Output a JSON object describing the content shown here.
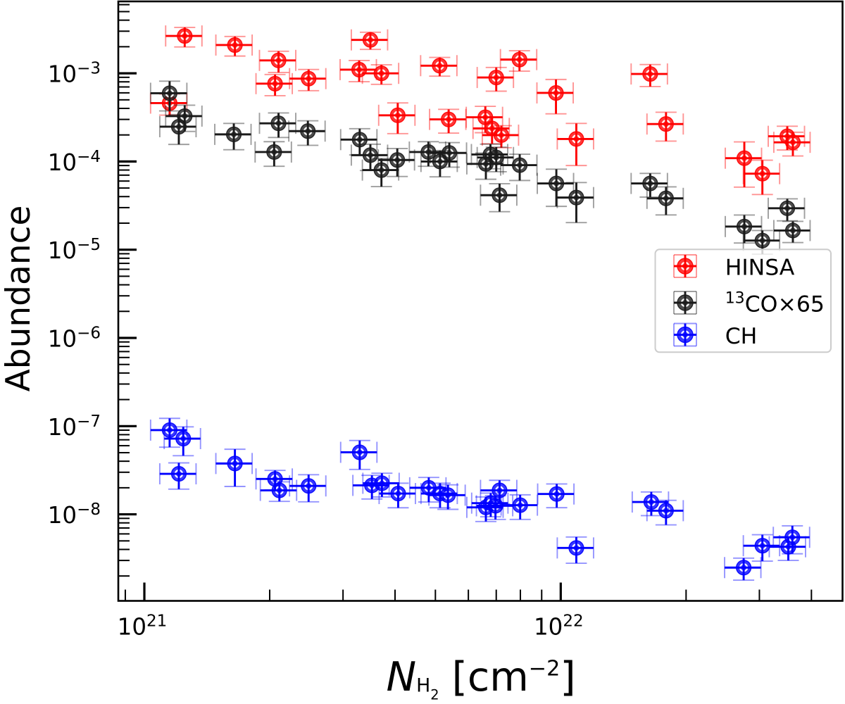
{
  "chart_data": {
    "type": "scatter",
    "title": "",
    "xlabel": {
      "text": "N_H2 [cm^-2]",
      "segments": [
        {
          "t": "N",
          "s": "italic"
        },
        {
          "t": "H",
          "s": "sub"
        },
        {
          "t": "2",
          "s": "subsub"
        },
        {
          "t": " [cm",
          "s": ""
        },
        {
          "t": "−2",
          "s": "sup"
        },
        {
          "t": "]",
          "s": ""
        }
      ]
    },
    "ylabel": {
      "text": "Abundance"
    },
    "axes": {
      "xscale": "log",
      "yscale": "log",
      "xlim": [
        8.658e+20,
        4.751e+22
      ],
      "ylim": [
        1.0448e-09,
        0.0065283
      ],
      "x_labeled_decades": [
        21,
        22
      ],
      "y_labeled_decades": [
        -3,
        -4,
        -5,
        -6,
        -7,
        -8
      ],
      "tick_label_base": "10",
      "grid": false
    },
    "legend": {
      "position": "center right",
      "entries": [
        {
          "label": "HINSA",
          "segments": [
            {
              "t": "HINSA",
              "s": ""
            }
          ],
          "color": "#ff0000"
        },
        {
          "label": "13CO×65",
          "segments": [
            {
              "t": "13",
              "s": "sup"
            },
            {
              "t": "CO×65",
              "s": ""
            }
          ],
          "color": "#1a1a1a"
        },
        {
          "label": "CH",
          "segments": [
            {
              "t": "CH",
              "s": ""
            }
          ],
          "color": "#0000ff"
        }
      ]
    },
    "series": [
      {
        "name": "HINSA",
        "color": "#ff0000",
        "points": [
          {
            "x": 1.15e+21,
            "y": 0.000459,
            "xerr": 1.15e+20,
            "yerr": 0.000124
          },
          {
            "x": 1.25e+21,
            "y": 0.00265,
            "xerr": 1.25e+20,
            "yerr": 0.000663
          },
          {
            "x": 1.65e+21,
            "y": 0.00209,
            "xerr": 1.65e+20,
            "yerr": 0.000522
          },
          {
            "x": 2.1e+21,
            "y": 0.0014,
            "xerr": 2.1e+20,
            "yerr": 0.000378
          },
          {
            "x": 2.06e+21,
            "y": 0.000763,
            "xerr": 2.06e+20,
            "yerr": 0.000206
          },
          {
            "x": 2.48e+21,
            "y": 0.00087,
            "xerr": 2.48e+20,
            "yerr": 0.000235
          },
          {
            "x": 3.28e+21,
            "y": 0.0011,
            "xerr": 3.28e+20,
            "yerr": 0.000297
          },
          {
            "x": 3.49e+21,
            "y": 0.00239,
            "xerr": 3.49e+20,
            "yerr": 0.000526
          },
          {
            "x": 3.71e+21,
            "y": 0.000998,
            "xerr": 3.71e+20,
            "yerr": 0.000249
          },
          {
            "x": 4.06e+21,
            "y": 0.000334,
            "xerr": 4.06e+20,
            "yerr": 0.000127
          },
          {
            "x": 5.12e+21,
            "y": 0.00122,
            "xerr": 5.12e+20,
            "yerr": 0.000293
          },
          {
            "x": 5.38e+21,
            "y": 0.0003,
            "xerr": 5.38e+20,
            "yerr": 9e-05
          },
          {
            "x": 6.59e+21,
            "y": 0.000317,
            "xerr": 6.59e+20,
            "yerr": 0.000105
          },
          {
            "x": 6.84e+21,
            "y": 0.000237,
            "xerr": 6.84e+20,
            "yerr": 7.82e-05
          },
          {
            "x": 7.2e+21,
            "y": 0.000199,
            "xerr": 7.2e+20,
            "yerr": 5.57e-05
          },
          {
            "x": 7e+21,
            "y": 0.000896,
            "xerr": 7e+20,
            "yerr": 0.000269
          },
          {
            "x": 7.96e+21,
            "y": 0.00143,
            "xerr": 7.96e+20,
            "yerr": 0.000372
          },
          {
            "x": 9.74e+21,
            "y": 0.000599,
            "xerr": 9.74e+20,
            "yerr": 0.000252
          },
          {
            "x": 1.09e+22,
            "y": 0.00018,
            "xerr": 1.09e+21,
            "yerr": 9e-05
          },
          {
            "x": 1.64e+22,
            "y": 0.000982,
            "xerr": 1.64e+21,
            "yerr": 0.000275
          },
          {
            "x": 1.79e+22,
            "y": 0.000266,
            "xerr": 1.79e+21,
            "yerr": 9.58e-05
          },
          {
            "x": 2.76e+22,
            "y": 0.000109,
            "xerr": 2.76e+21,
            "yerr": 5.78e-05
          },
          {
            "x": 3.05e+22,
            "y": 7.28e-05,
            "xerr": 3.05e+21,
            "yerr": 3.06e-05
          },
          {
            "x": 3.5e+22,
            "y": 0.000193,
            "xerr": 3.5e+21,
            "yerr": 5.79e-05
          },
          {
            "x": 3.61e+22,
            "y": 0.000165,
            "xerr": 3.61e+21,
            "yerr": 4.95e-05
          }
        ]
      },
      {
        "name": "13CO×65",
        "color": "#1a1a1a",
        "points": [
          {
            "x": 1.15e+21,
            "y": 0.000594,
            "xerr": 1.15e+20,
            "yerr": 0.00022
          },
          {
            "x": 1.25e+21,
            "y": 0.000327,
            "xerr": 1.25e+20,
            "yerr": 0.000108
          },
          {
            "x": 1.21e+21,
            "y": 0.000248,
            "xerr": 1.21e+20,
            "yerr": 9.18e-05
          },
          {
            "x": 1.64e+21,
            "y": 0.000203,
            "xerr": 1.64e+20,
            "yerr": 6.7e-05
          },
          {
            "x": 2.1e+21,
            "y": 0.000271,
            "xerr": 2.1e+20,
            "yerr": 8.4e-05
          },
          {
            "x": 2.05e+21,
            "y": 0.000128,
            "xerr": 2.05e+20,
            "yerr": 3.97e-05
          },
          {
            "x": 2.47e+21,
            "y": 0.000221,
            "xerr": 2.47e+20,
            "yerr": 6.85e-05
          },
          {
            "x": 3.29e+21,
            "y": 0.000177,
            "xerr": 3.29e+20,
            "yerr": 5.84e-05
          },
          {
            "x": 3.49e+21,
            "y": 0.000118,
            "xerr": 3.49e+20,
            "yerr": 3.89e-05
          },
          {
            "x": 3.71e+21,
            "y": 7.99e-05,
            "xerr": 3.71e+20,
            "yerr": 2.8e-05
          },
          {
            "x": 4.05e+21,
            "y": 0.000104,
            "xerr": 4.05e+20,
            "yerr": 3.64e-05
          },
          {
            "x": 4.81e+21,
            "y": 0.000128,
            "xerr": 4.81e+20,
            "yerr": 3.97e-05
          },
          {
            "x": 5.13e+21,
            "y": 0.0001,
            "xerr": 5.13e+20,
            "yerr": 3.3e-05
          },
          {
            "x": 5.4e+21,
            "y": 0.000125,
            "xerr": 5.4e+20,
            "yerr": 3.87e-05
          },
          {
            "x": 6.61e+21,
            "y": 9.39e-05,
            "xerr": 6.61e+20,
            "yerr": 3.1e-05
          },
          {
            "x": 6.78e+21,
            "y": 0.00012,
            "xerr": 6.78e+20,
            "yerr": 3.72e-05
          },
          {
            "x": 7e+21,
            "y": 0.000111,
            "xerr": 7e+20,
            "yerr": 3.44e-05
          },
          {
            "x": 7.13e+21,
            "y": 4.15e-05,
            "xerr": 7.13e+20,
            "yerr": 1.45e-05
          },
          {
            "x": 7.97e+21,
            "y": 9.09e-05,
            "xerr": 7.97e+20,
            "yerr": 3e-05
          },
          {
            "x": 9.76e+21,
            "y": 5.64e-05,
            "xerr": 9.76e+20,
            "yerr": 2.54e-05
          },
          {
            "x": 1.09e+22,
            "y": 3.9e-05,
            "xerr": 1.09e+21,
            "yerr": 1.87e-05
          },
          {
            "x": 1.64e+22,
            "y": 5.64e-05,
            "xerr": 1.64e+21,
            "yerr": 1.69e-05
          },
          {
            "x": 1.79e+22,
            "y": 3.82e-05,
            "xerr": 1.79e+21,
            "yerr": 1.34e-05
          },
          {
            "x": 2.76e+22,
            "y": 1.83e-05,
            "xerr": 2.76e+21,
            "yerr": 6.4e-06
          },
          {
            "x": 3.05e+22,
            "y": 1.27e-05,
            "xerr": 3.05e+21,
            "yerr": 3.81e-06
          },
          {
            "x": 3.5e+22,
            "y": 2.95e-05,
            "xerr": 3.5e+21,
            "yerr": 8.26e-06
          },
          {
            "x": 3.61e+22,
            "y": 1.65e-05,
            "xerr": 3.61e+21,
            "yerr": 4.46e-06
          }
        ]
      },
      {
        "name": "CH",
        "color": "#0000ff",
        "points": [
          {
            "x": 1.15e+21,
            "y": 9.01e-08,
            "xerr": 1.15e+20,
            "yerr": 3.24e-08
          },
          {
            "x": 1.24e+21,
            "y": 7.22e-08,
            "xerr": 1.24e+20,
            "yerr": 2.6e-08
          },
          {
            "x": 1.21e+21,
            "y": 2.88e-08,
            "xerr": 1.21e+20,
            "yerr": 9.5e-09
          },
          {
            "x": 1.65e+21,
            "y": 3.77e-08,
            "xerr": 1.65e+20,
            "yerr": 1.7e-08
          },
          {
            "x": 2.06e+21,
            "y": 2.52e-08,
            "xerr": 2.06e+20,
            "yerr": 6.3e-09
          },
          {
            "x": 2.11e+21,
            "y": 1.87e-08,
            "xerr": 2.11e+20,
            "yerr": 4.67e-09
          },
          {
            "x": 2.48e+21,
            "y": 2.1e-08,
            "xerr": 2.48e+20,
            "yerr": 7.14e-09
          },
          {
            "x": 3.29e+21,
            "y": 5.05e-08,
            "xerr": 3.29e+20,
            "yerr": 1.82e-08
          },
          {
            "x": 3.52e+21,
            "y": 2.13e-08,
            "xerr": 3.52e+20,
            "yerr": 6.39e-09
          },
          {
            "x": 3.72e+21,
            "y": 2.25e-08,
            "xerr": 3.72e+20,
            "yerr": 6.75e-09
          },
          {
            "x": 4.07e+21,
            "y": 1.72e-08,
            "xerr": 4.07e+20,
            "yerr": 5.33e-09
          },
          {
            "x": 4.82e+21,
            "y": 2e-08,
            "xerr": 4.82e+20,
            "yerr": 6.2e-09
          },
          {
            "x": 5.13e+21,
            "y": 1.72e-08,
            "xerr": 5.13e+20,
            "yerr": 5.33e-09
          },
          {
            "x": 5.36e+21,
            "y": 1.65e-08,
            "xerr": 5.36e+20,
            "yerr": 5.11e-09
          },
          {
            "x": 6.61e+21,
            "y": 1.2e-08,
            "xerr": 6.61e+20,
            "yerr": 3.72e-09
          },
          {
            "x": 6.79e+21,
            "y": 1.34e-08,
            "xerr": 6.79e+20,
            "yerr": 4.02e-09
          },
          {
            "x": 6.97e+21,
            "y": 1.25e-08,
            "xerr": 6.97e+20,
            "yerr": 3.75e-09
          },
          {
            "x": 7.13e+21,
            "y": 1.87e-08,
            "xerr": 7.13e+20,
            "yerr": 5.61e-09
          },
          {
            "x": 7.99e+21,
            "y": 1.27e-08,
            "xerr": 7.99e+20,
            "yerr": 3.94e-09
          },
          {
            "x": 9.78e+21,
            "y": 1.7e-08,
            "xerr": 9.78e+20,
            "yerr": 5.1e-09
          },
          {
            "x": 1.09e+22,
            "y": 4.16e-09,
            "xerr": 1.09e+21,
            "yerr": 1.37e-09
          },
          {
            "x": 1.65e+22,
            "y": 1.38e-08,
            "xerr": 1.65e+21,
            "yerr": 4.14e-09
          },
          {
            "x": 1.79e+22,
            "y": 1.1e-08,
            "xerr": 1.79e+21,
            "yerr": 3.41e-09
          },
          {
            "x": 2.75e+22,
            "y": 2.49e-09,
            "xerr": 2.75e+21,
            "yerr": 6.97e-10
          },
          {
            "x": 3.05e+22,
            "y": 4.41e-09,
            "xerr": 3.05e+21,
            "yerr": 1.46e-09
          },
          {
            "x": 3.52e+22,
            "y": 4.29e-09,
            "xerr": 3.52e+21,
            "yerr": 1.29e-09
          },
          {
            "x": 3.6e+22,
            "y": 5.49e-09,
            "xerr": 3.6e+21,
            "yerr": 1.92e-09
          }
        ]
      }
    ],
    "style": {
      "background_color": "#ffffff",
      "axis_color": "#000000",
      "legend_edge_color": "#cccccc",
      "marker_inner_ring_color": "#ffffff"
    }
  }
}
